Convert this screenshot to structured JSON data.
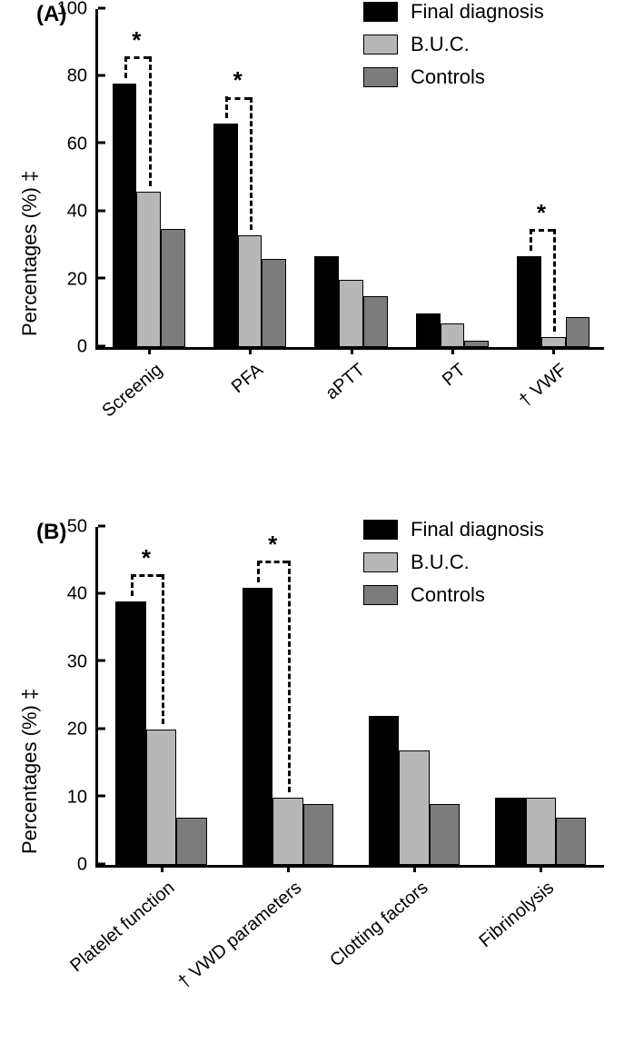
{
  "panelA": {
    "label": "(A)",
    "type": "bar",
    "y_label": "Percentages (%) ‡",
    "ylim": [
      0,
      100
    ],
    "ytick_step": 20,
    "legend": [
      {
        "name": "Final diagnosis",
        "color": "#000000"
      },
      {
        "name": "B.U.C.",
        "color": "#b7b7b7"
      },
      {
        "name": "Controls",
        "color": "#7c7c7c"
      }
    ],
    "categories": [
      "Screenig",
      "PFA",
      "aPTT",
      "PT",
      "† VWF"
    ],
    "series": {
      "Final diagnosis": [
        78,
        66,
        27,
        10,
        27
      ],
      "B.U.C.": [
        46,
        33,
        20,
        7,
        3
      ],
      "Controls": [
        35,
        26,
        15,
        2,
        9
      ]
    },
    "significance": [
      {
        "group": 0,
        "bars": [
          0,
          1
        ],
        "label": "*"
      },
      {
        "group": 1,
        "bars": [
          0,
          1
        ],
        "label": "*"
      },
      {
        "group": 4,
        "bars": [
          0,
          1
        ],
        "label": "*"
      }
    ],
    "bar_border": "#000000",
    "background_color": "#ffffff",
    "label_fontsize": 22,
    "panel_label_fontsize": 24
  },
  "panelB": {
    "label": "(B)",
    "type": "bar",
    "y_label": "Percentages (%) ‡",
    "ylim": [
      0,
      50
    ],
    "ytick_step": 10,
    "legend": [
      {
        "name": "Final diagnosis",
        "color": "#000000"
      },
      {
        "name": "B.U.C.",
        "color": "#b7b7b7"
      },
      {
        "name": "Controls",
        "color": "#7c7c7c"
      }
    ],
    "categories": [
      "Platelet function",
      "† VWD parameters",
      "Clotting factors",
      "Fibrinolysis"
    ],
    "series": {
      "Final diagnosis": [
        39,
        41,
        22,
        10
      ],
      "B.U.C.": [
        20,
        10,
        17,
        10
      ],
      "Controls": [
        7,
        9,
        9,
        7
      ]
    },
    "significance": [
      {
        "group": 0,
        "bars": [
          0,
          1
        ],
        "label": "*"
      },
      {
        "group": 1,
        "bars": [
          0,
          1
        ],
        "label": "*"
      }
    ],
    "bar_border": "#000000",
    "background_color": "#ffffff",
    "label_fontsize": 22,
    "panel_label_fontsize": 24
  }
}
